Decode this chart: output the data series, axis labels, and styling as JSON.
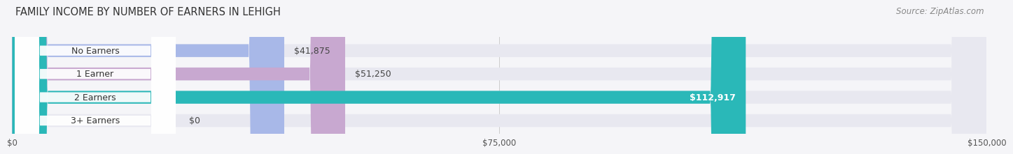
{
  "title": "FAMILY INCOME BY NUMBER OF EARNERS IN LEHIGH",
  "source": "Source: ZipAtlas.com",
  "categories": [
    "No Earners",
    "1 Earner",
    "2 Earners",
    "3+ Earners"
  ],
  "values": [
    41875,
    51250,
    112917,
    0
  ],
  "bar_colors": [
    "#a8b8e8",
    "#c8a8d0",
    "#2ab8b8",
    "#c0c8e8"
  ],
  "bar_bg_color": "#e8e8f0",
  "label_values": [
    "$41,875",
    "$51,250",
    "$112,917",
    "$0"
  ],
  "xlim": [
    0,
    150000
  ],
  "xtick_values": [
    0,
    75000,
    150000
  ],
  "xtick_labels": [
    "$0",
    "$75,000",
    "$150,000"
  ],
  "background_color": "#f5f5f8",
  "title_fontsize": 10.5,
  "source_fontsize": 8.5,
  "bar_height": 0.55,
  "bar_label_fontsize": 9,
  "category_fontsize": 9
}
